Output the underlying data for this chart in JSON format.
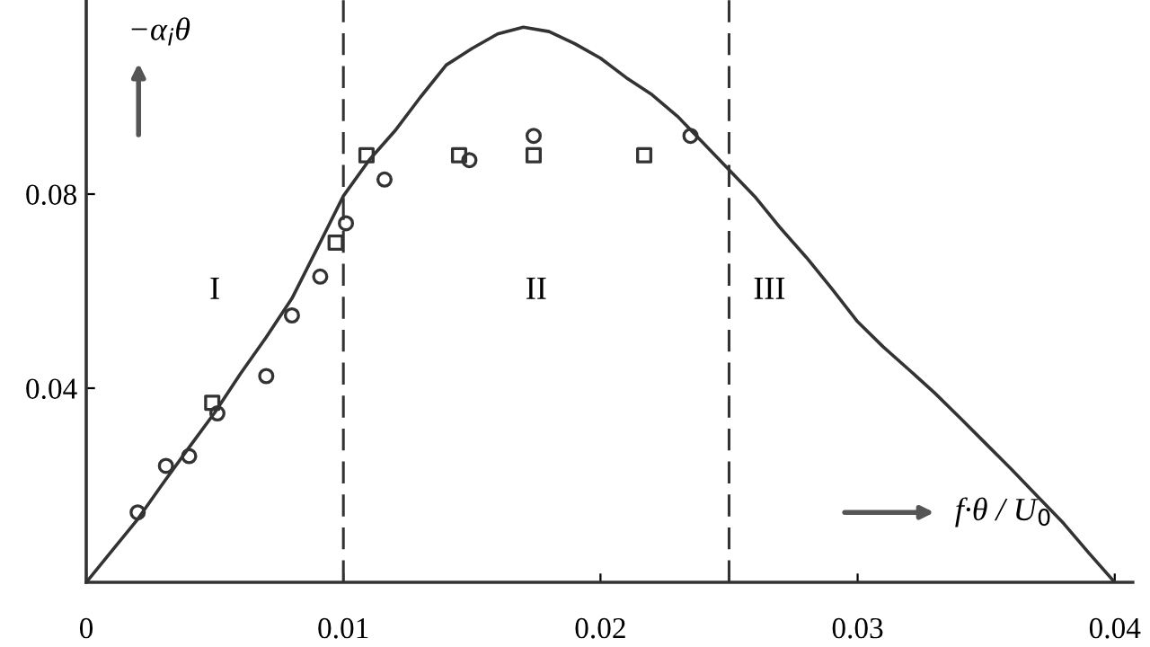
{
  "chart_data": {
    "type": "scatter",
    "xlabel": "f·θ / U$_{0}$",
    "ylabel": "−α$_{i}$θ",
    "xlim": [
      0,
      0.0407
    ],
    "ylim": [
      0,
      0.12
    ],
    "xticks": [
      0,
      0.01,
      0.02,
      0.03,
      0.04
    ],
    "yticks": [
      0.04,
      0.08
    ],
    "grid": false,
    "ref_lines": [
      {
        "axis": "x",
        "value": 0.01,
        "color": "#333333",
        "line_style": "dashed"
      },
      {
        "axis": "x",
        "value": 0.025,
        "color": "#333333",
        "line_style": "dashed"
      }
    ],
    "annotations": [
      "I",
      "II",
      "III"
    ],
    "series": [
      {
        "type": "line",
        "color": "#333333",
        "marker": "none",
        "line_style": "solid",
        "x": [
          0,
          0.001,
          0.002,
          0.003,
          0.004,
          0.005,
          0.006,
          0.007,
          0.008,
          0.009,
          0.01,
          0.011,
          0.012,
          0.013,
          0.014,
          0.015,
          0.016,
          0.017,
          0.018,
          0.019,
          0.02,
          0.021,
          0.022,
          0.023,
          0.024,
          0.025,
          0.026,
          0.027,
          0.028,
          0.029,
          0.03,
          0.031,
          0.032,
          0.033,
          0.034,
          0.035,
          0.036,
          0.037,
          0.038,
          0.039,
          0.04
        ],
        "values": [
          0,
          0.0065,
          0.013,
          0.0205,
          0.0278,
          0.035,
          0.043,
          0.0505,
          0.0585,
          0.069,
          0.0796,
          0.087,
          0.093,
          0.1,
          0.1066,
          0.11,
          0.113,
          0.1144,
          0.1135,
          0.111,
          0.108,
          0.104,
          0.1005,
          0.096,
          0.0905,
          0.085,
          0.0795,
          0.073,
          0.067,
          0.0605,
          0.0537,
          0.0485,
          0.0438,
          0.039,
          0.0338,
          0.0285,
          0.0232,
          0.0177,
          0.0122,
          0.006,
          0
        ]
      },
      {
        "color": "#333333",
        "marker": "circle",
        "x": [
          0.002,
          0.0031,
          0.004,
          0.0051,
          0.007,
          0.008,
          0.0091,
          0.0101,
          0.0116,
          0.0149,
          0.0174,
          0.0235
        ],
        "values": [
          0.0144,
          0.024,
          0.026,
          0.0348,
          0.0425,
          0.055,
          0.063,
          0.074,
          0.083,
          0.087,
          0.092,
          0.092
        ]
      },
      {
        "color": "#333333",
        "marker": "square",
        "x": [
          0.0049,
          0.0097,
          0.0109,
          0.0145,
          0.0174,
          0.0217
        ],
        "values": [
          0.037,
          0.07,
          0.088,
          0.088,
          0.088,
          0.088
        ]
      }
    ]
  }
}
